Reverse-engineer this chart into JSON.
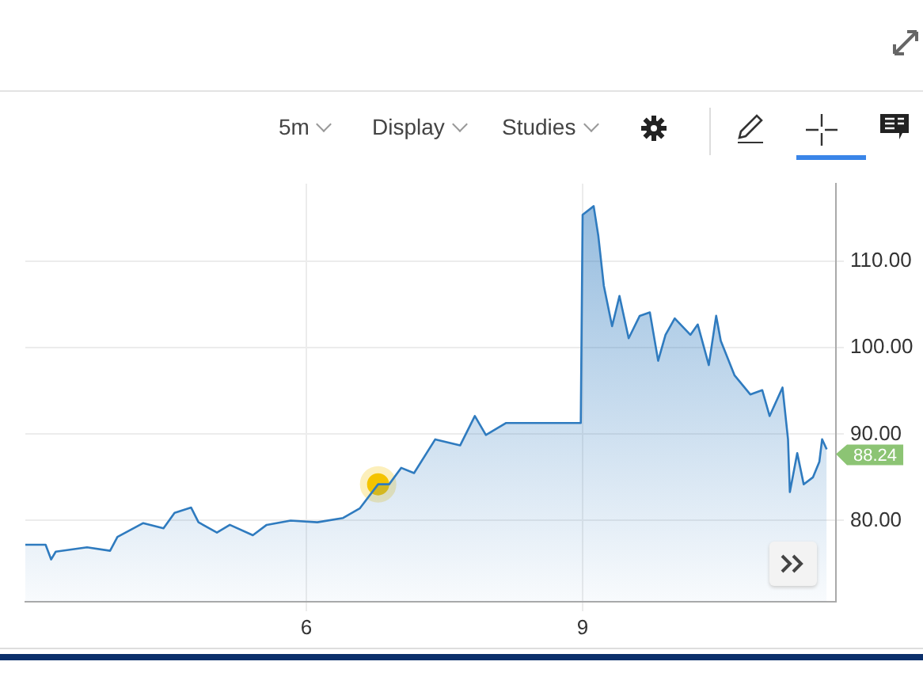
{
  "chart_data": {
    "type": "area",
    "annotations": [
      "5m",
      "Display",
      "Studies"
    ],
    "xlim": [
      2.95,
      11.75
    ],
    "xticks": [
      6,
      9
    ],
    "ylim": [
      70.6,
      119
    ],
    "yticks": [
      {
        "value": 80,
        "label": "80.00"
      },
      {
        "value": 90,
        "label": "90.00"
      },
      {
        "value": 100,
        "label": "100.00"
      },
      {
        "value": 110,
        "label": "110.00"
      }
    ],
    "grid": true,
    "legend": false,
    "series": [
      {
        "color": "#2f7bbf",
        "x": [
          2.95,
          3.17,
          3.23,
          3.28,
          3.62,
          3.87,
          3.95,
          4.23,
          4.45,
          4.57,
          4.75,
          4.83,
          5.03,
          5.17,
          5.42,
          5.57,
          5.83,
          6.12,
          6.4,
          6.58,
          6.78,
          6.9,
          7.03,
          7.17,
          7.4,
          7.67,
          7.83,
          7.95,
          8.17,
          8.45,
          8.98,
          9.0,
          9.12,
          9.17,
          9.23,
          9.32,
          9.4,
          9.5,
          9.62,
          9.73,
          9.82,
          9.9,
          10.0,
          10.17,
          10.25,
          10.37,
          10.45,
          10.5,
          10.65,
          10.82,
          10.95,
          11.03,
          11.17,
          11.23,
          11.25,
          11.33,
          11.4,
          11.5,
          11.57,
          11.6,
          11.65
        ],
        "values": [
          77.2,
          77.2,
          75.5,
          76.4,
          76.9,
          76.5,
          78.1,
          79.7,
          79.1,
          80.9,
          81.5,
          79.8,
          78.6,
          79.5,
          78.3,
          79.5,
          80.0,
          79.8,
          80.3,
          81.4,
          84.2,
          84.2,
          86.1,
          85.5,
          89.4,
          88.7,
          92.1,
          89.9,
          91.3,
          91.3,
          91.3,
          115.4,
          116.4,
          113.0,
          107.2,
          102.5,
          106.0,
          101.1,
          103.7,
          104.1,
          98.5,
          101.5,
          103.4,
          101.5,
          102.7,
          98.0,
          103.7,
          100.8,
          96.8,
          94.6,
          95.1,
          92.1,
          95.4,
          89.4,
          83.3,
          87.8,
          84.2,
          85.0,
          86.8,
          89.4,
          88.24
        ],
        "value_labels": [
          null,
          null,
          null,
          null,
          null,
          null,
          null,
          null,
          null,
          null,
          null,
          null,
          null,
          null,
          null,
          null,
          null,
          null,
          null,
          null,
          null,
          null,
          null,
          null,
          null,
          null,
          null,
          null,
          null,
          null,
          null,
          null,
          null,
          null,
          null,
          null,
          null,
          null,
          null,
          null,
          null,
          null,
          null,
          null,
          null,
          null,
          null,
          null,
          null,
          null,
          null,
          null,
          null,
          null,
          null,
          null,
          null,
          null,
          null,
          null,
          "88.24"
        ]
      },
      {
        "type": "scatter",
        "color": "#f5c400",
        "x": [
          6.78
        ],
        "values": [
          84.2
        ]
      }
    ]
  }
}
